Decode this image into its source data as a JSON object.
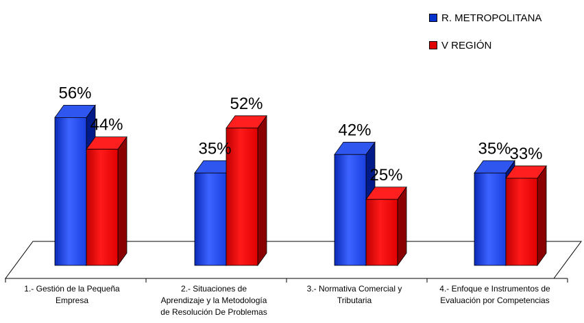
{
  "chart_data": {
    "type": "bar",
    "categories": [
      [
        "1.- Gestión de la Pequeña",
        "Empresa"
      ],
      [
        "2.- Situaciones de",
        "Aprendizaje y la Metodología",
        "de Resolución De Problemas"
      ],
      [
        "3.- Normativa Comercial y",
        "Tributaria"
      ],
      [
        "4.- Enfoque e Instrumentos de",
        "Evaluación por Competencias"
      ]
    ],
    "series": [
      {
        "name": "R. METROPOLITANA",
        "values": [
          56,
          35,
          42,
          35
        ],
        "labels": [
          "56%",
          "35%",
          "42%",
          "35%"
        ],
        "color": "#0033CC"
      },
      {
        "name": "V REGIÓN",
        "values": [
          44,
          52,
          25,
          33
        ],
        "labels": [
          "44%",
          "52%",
          "25%",
          "33%"
        ],
        "color": "#E00000"
      }
    ],
    "ylim": [
      0,
      60
    ],
    "grid": false,
    "legend_position": "top-right"
  }
}
